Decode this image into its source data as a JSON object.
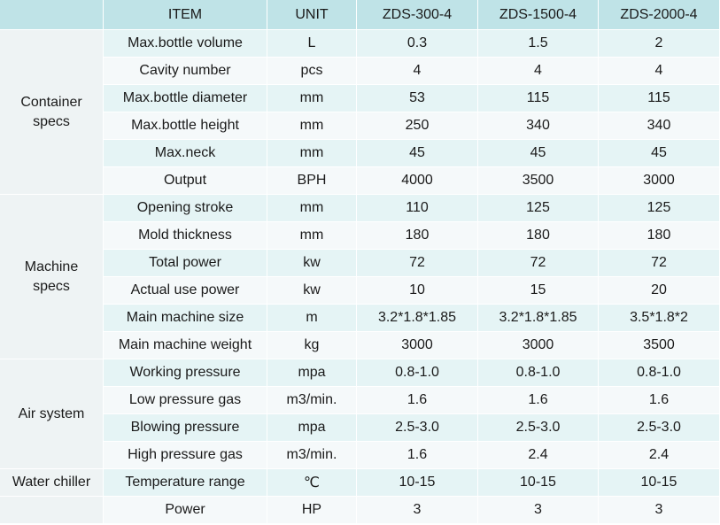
{
  "header": {
    "group": "",
    "item": "ITEM",
    "unit": "UNIT",
    "models": [
      "ZDS-300-4",
      "ZDS-1500-4",
      "ZDS-2000-4"
    ]
  },
  "groups": [
    {
      "name_lines": [
        "Container",
        "specs"
      ],
      "rows": [
        {
          "item": "Max.bottle volume",
          "unit": "L",
          "values": [
            "0.3",
            "1.5",
            "2"
          ]
        },
        {
          "item": "Cavity number",
          "unit": "pcs",
          "values": [
            "4",
            "4",
            "4"
          ]
        },
        {
          "item": "Max.bottle diameter",
          "unit": "mm",
          "values": [
            "53",
            "115",
            "115"
          ]
        },
        {
          "item": "Max.bottle height",
          "unit": "mm",
          "values": [
            "250",
            "340",
            "340"
          ]
        },
        {
          "item": "Max.neck",
          "unit": "mm",
          "values": [
            "45",
            "45",
            "45"
          ]
        },
        {
          "item": "Output",
          "unit": "BPH",
          "values": [
            "4000",
            "3500",
            "3000"
          ]
        }
      ]
    },
    {
      "name_lines": [
        "Machine",
        "specs"
      ],
      "rows": [
        {
          "item": "Opening stroke",
          "unit": "mm",
          "values": [
            "110",
            "125",
            "125"
          ]
        },
        {
          "item": "Mold thickness",
          "unit": "mm",
          "values": [
            "180",
            "180",
            "180"
          ]
        },
        {
          "item": "Total power",
          "unit": "kw",
          "values": [
            "72",
            "72",
            "72"
          ]
        },
        {
          "item": "Actual use power",
          "unit": "kw",
          "values": [
            "10",
            "15",
            "20"
          ]
        },
        {
          "item": "Main machine size",
          "unit": "m",
          "values": [
            "3.2*1.8*1.85",
            "3.2*1.8*1.85",
            "3.5*1.8*2"
          ]
        },
        {
          "item": "Main machine weight",
          "unit": "kg",
          "values": [
            "3000",
            "3000",
            "3500"
          ]
        }
      ]
    },
    {
      "name_lines": [
        "Air system"
      ],
      "rows": [
        {
          "item": "Working pressure",
          "unit": "mpa",
          "values": [
            "0.8-1.0",
            "0.8-1.0",
            "0.8-1.0"
          ]
        },
        {
          "item": "Low pressure gas",
          "unit": "m3/min.",
          "values": [
            "1.6",
            "1.6",
            "1.6"
          ]
        },
        {
          "item": "Blowing pressure",
          "unit": "mpa",
          "values": [
            "2.5-3.0",
            "2.5-3.0",
            "2.5-3.0"
          ]
        },
        {
          "item": "High pressure gas",
          "unit": "m3/min.",
          "values": [
            "1.6",
            "2.4",
            "2.4"
          ]
        }
      ]
    },
    {
      "name_lines": [
        "Water chiller"
      ],
      "name_on_first_row": true,
      "rows": [
        {
          "item": "Temperature range",
          "unit": "℃",
          "values": [
            "10-15",
            "10-15",
            "10-15"
          ]
        },
        {
          "item": "Power",
          "unit": "HP",
          "values": [
            "3",
            "3",
            "3"
          ]
        }
      ]
    }
  ]
}
